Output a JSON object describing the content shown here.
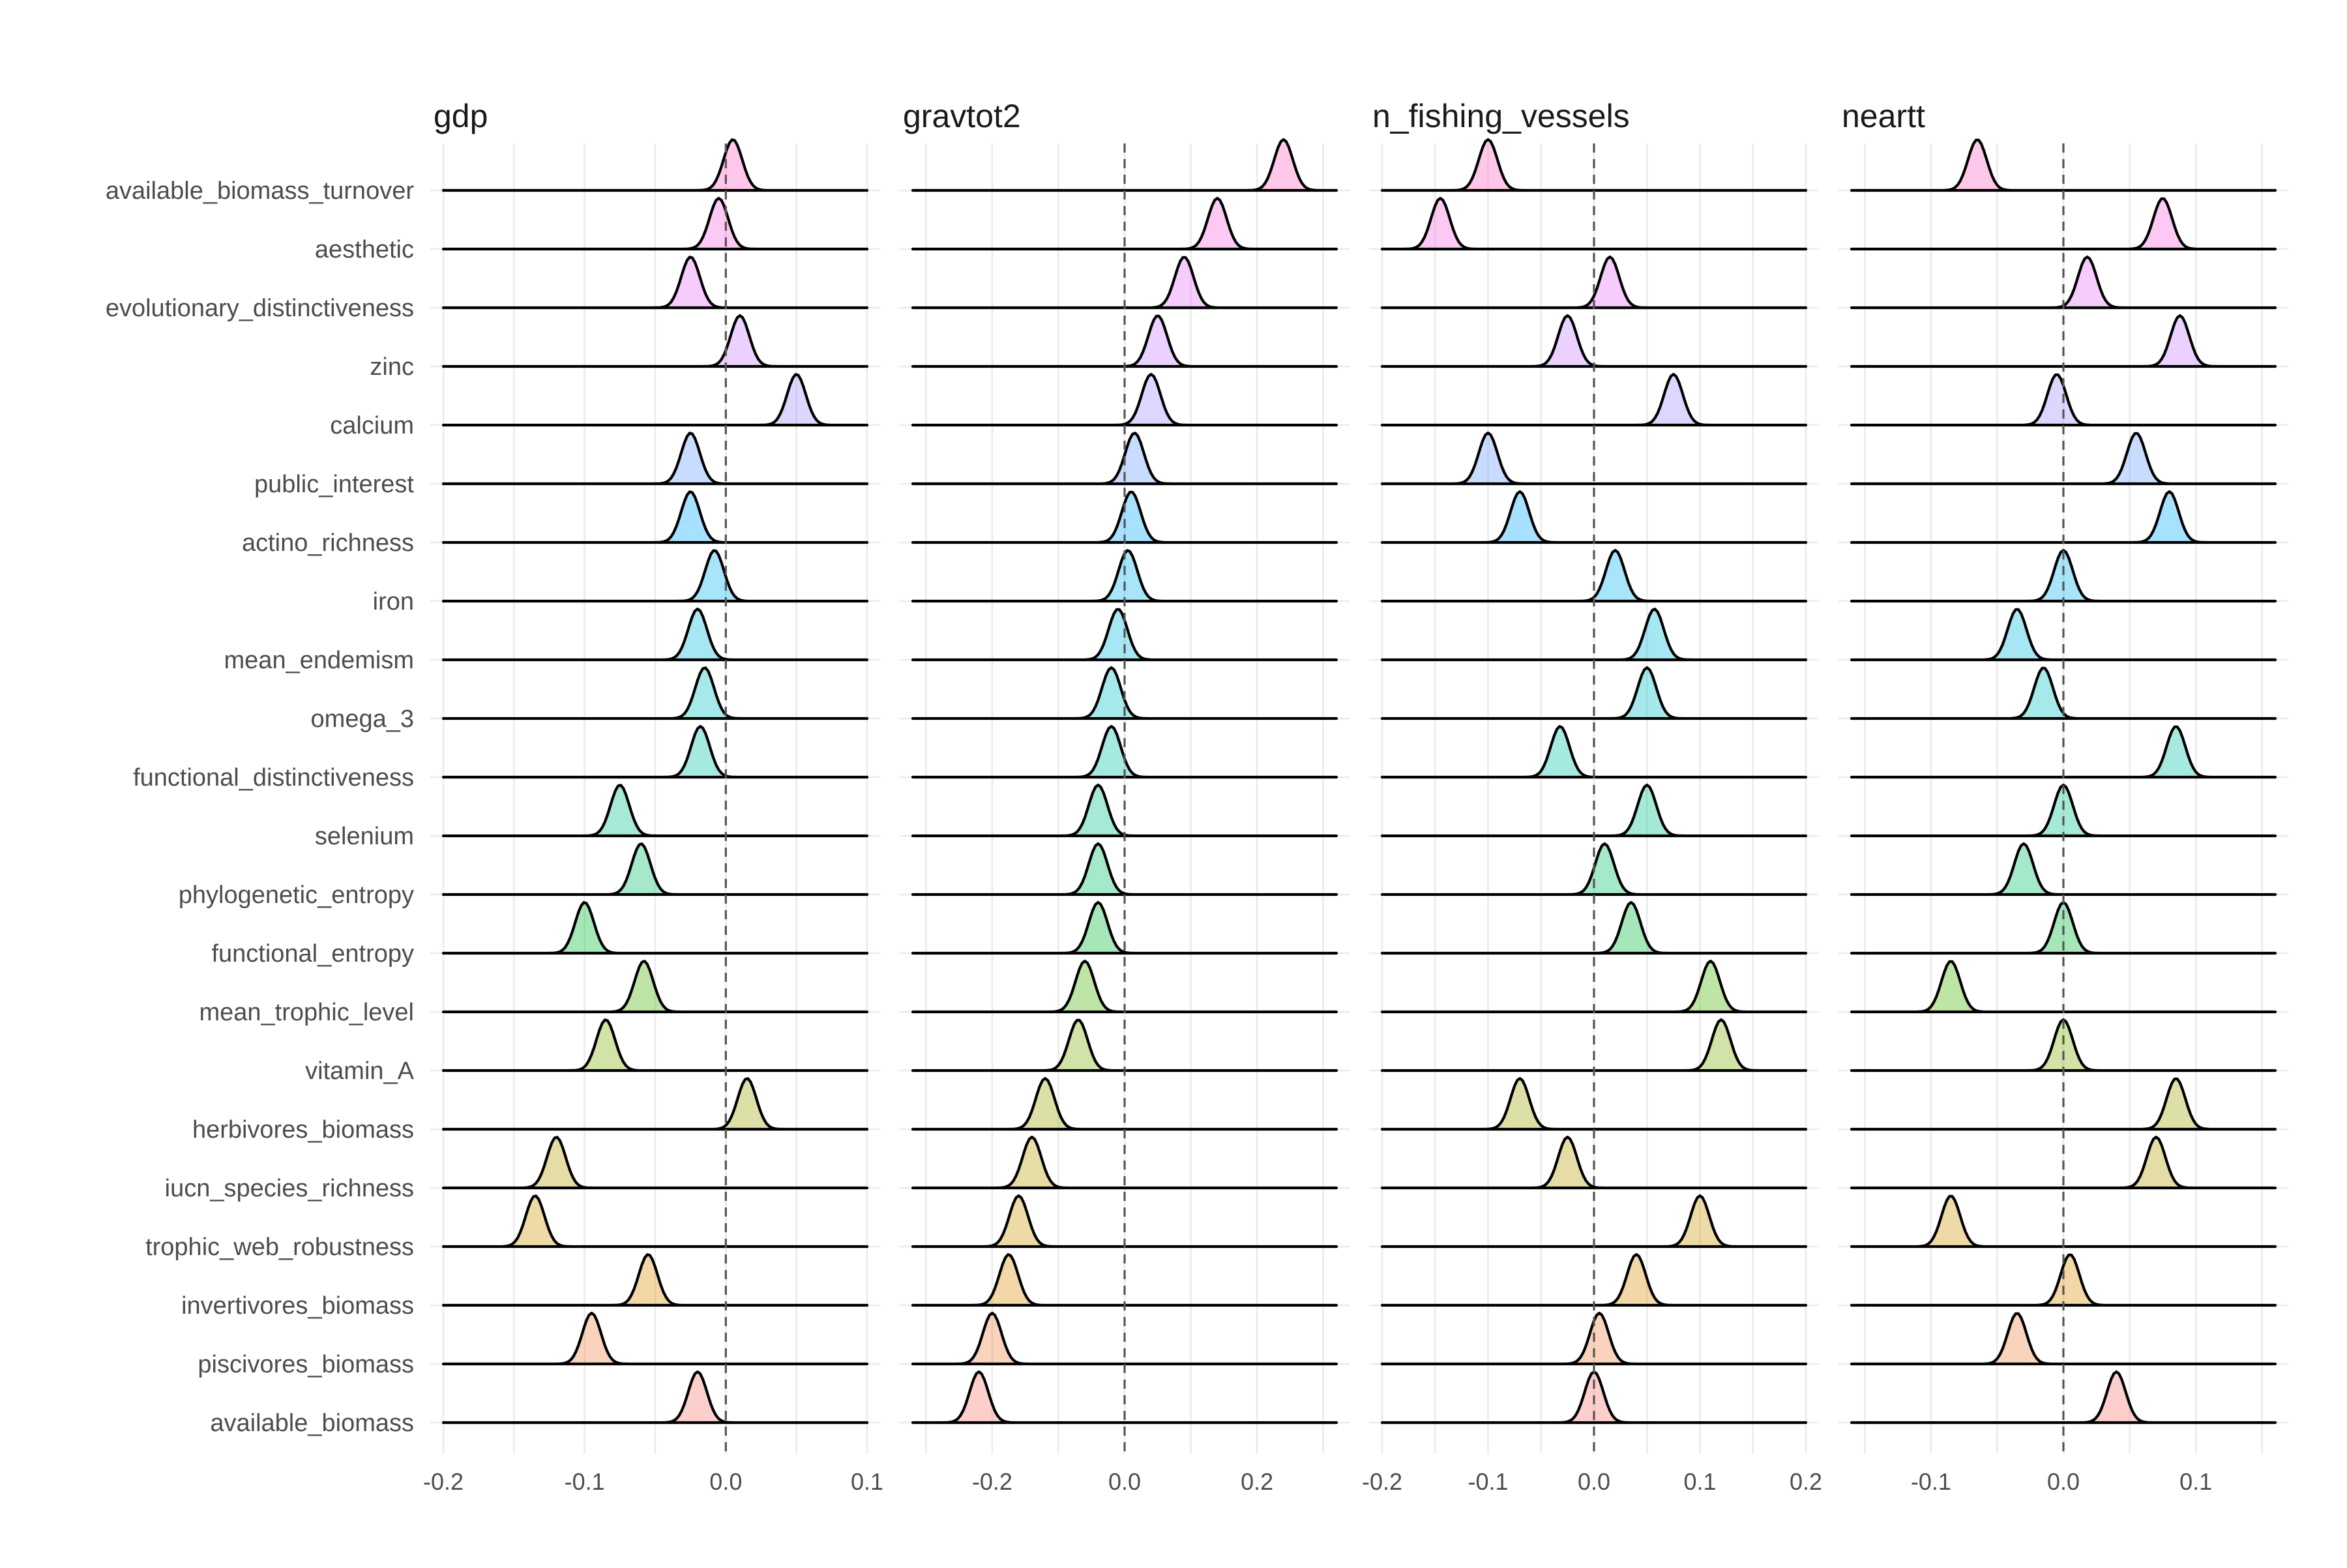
{
  "chart_data": {
    "type": "ridgeline",
    "title": "",
    "xlabel": "",
    "ylabel": "",
    "grid": true,
    "reference_line": {
      "x": 0,
      "style": "dashed"
    },
    "rows": [
      "available_biomass_turnover",
      "aesthetic",
      "evolutionary_distinctiveness",
      "zinc",
      "calcium",
      "public_interest",
      "actino_richness",
      "iron",
      "mean_endemism",
      "omega_3",
      "functional_distinctiveness",
      "selenium",
      "phylogenetic_entropy",
      "functional_entropy",
      "mean_trophic_level",
      "vitamin_A",
      "herbivores_biomass",
      "iucn_species_richness",
      "trophic_web_robustness",
      "invertivores_biomass",
      "piscivores_biomass",
      "available_biomass"
    ],
    "row_colors": [
      "#F8766D",
      "#ED813E",
      "#DE8C00",
      "#CD9600",
      "#B79F00",
      "#9DA700",
      "#7CAE00",
      "#49B500",
      "#00BA38",
      "#00BE67",
      "#00C08B",
      "#00C1AA",
      "#00BFC4",
      "#00BBDC",
      "#00B4F0",
      "#00A9FF",
      "#619CFF",
      "#9F8CFF",
      "#C77CFF",
      "#E36EF6",
      "#F564E3",
      "#FF61C3"
    ],
    "panels": [
      {
        "title": "gdp",
        "xlim": [
          -0.2,
          0.1
        ],
        "xticks": [
          -0.2,
          -0.1,
          0.0,
          0.1
        ],
        "xtick_labels": [
          "-0.2",
          "-0.1",
          "0.0",
          "0.1"
        ],
        "peaks": [
          0.005,
          -0.005,
          -0.025,
          0.01,
          0.05,
          -0.025,
          -0.025,
          -0.008,
          -0.02,
          -0.015,
          -0.018,
          -0.075,
          -0.06,
          -0.1,
          -0.058,
          -0.085,
          0.015,
          -0.12,
          -0.135,
          -0.055,
          -0.095,
          -0.02
        ]
      },
      {
        "title": "gravtot2",
        "xlim": [
          -0.32,
          0.32
        ],
        "xticks": [
          -0.2,
          0.0,
          0.2
        ],
        "xtick_labels": [
          "-0.2",
          "0.0",
          "0.2"
        ],
        "peaks": [
          0.24,
          0.14,
          0.09,
          0.05,
          0.04,
          0.015,
          0.01,
          0.005,
          -0.01,
          -0.02,
          -0.02,
          -0.04,
          -0.04,
          -0.04,
          -0.06,
          -0.07,
          -0.12,
          -0.14,
          -0.16,
          -0.175,
          -0.2,
          -0.22
        ]
      },
      {
        "title": "n_fishing_vessels",
        "xlim": [
          -0.2,
          0.2
        ],
        "xticks": [
          -0.2,
          -0.1,
          0.0,
          0.1,
          0.2
        ],
        "xtick_labels": [
          "-0.2",
          "-0.1",
          "0.0",
          "0.1",
          "0.2"
        ],
        "peaks": [
          -0.1,
          -0.145,
          0.015,
          -0.025,
          0.075,
          -0.1,
          -0.07,
          0.02,
          0.057,
          0.05,
          -0.032,
          0.05,
          0.01,
          0.035,
          0.11,
          0.12,
          -0.07,
          -0.025,
          0.1,
          0.04,
          0.005,
          0.0
        ]
      },
      {
        "title": "neartt",
        "xlim": [
          -0.16,
          0.16
        ],
        "xticks": [
          -0.1,
          0.0,
          0.1
        ],
        "xtick_labels": [
          "-0.1",
          "0.0",
          "0.1"
        ],
        "peaks": [
          -0.065,
          0.075,
          0.018,
          0.088,
          -0.005,
          0.055,
          0.08,
          0.0,
          -0.035,
          -0.015,
          0.085,
          0.0,
          -0.03,
          0.0,
          -0.085,
          0.0,
          0.085,
          0.07,
          -0.085,
          0.005,
          -0.035,
          0.04
        ]
      }
    ]
  }
}
